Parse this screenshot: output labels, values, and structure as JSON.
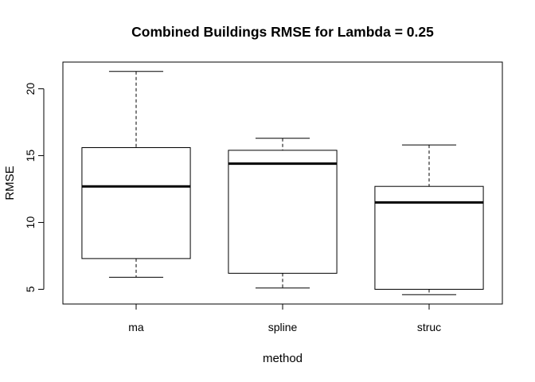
{
  "chart_data": {
    "type": "boxplot",
    "title": "Combined Buildings RMSE for Lambda =  0.25",
    "xlabel": "method",
    "ylabel": "RMSE",
    "categories": [
      "ma",
      "spline",
      "struc"
    ],
    "y_ticks": [
      5,
      10,
      15,
      20
    ],
    "ylim": [
      3.9,
      22.0
    ],
    "boxes": [
      {
        "category": "ma",
        "min": 5.9,
        "q1": 7.3,
        "median": 12.7,
        "q3": 15.6,
        "max": 21.3
      },
      {
        "category": "spline",
        "min": 5.1,
        "q1": 6.2,
        "median": 14.4,
        "q3": 15.4,
        "max": 16.3
      },
      {
        "category": "struc",
        "min": 4.6,
        "q1": 5.0,
        "median": 11.5,
        "q3": 12.7,
        "max": 15.8
      }
    ],
    "grid": false,
    "legend": "none"
  }
}
